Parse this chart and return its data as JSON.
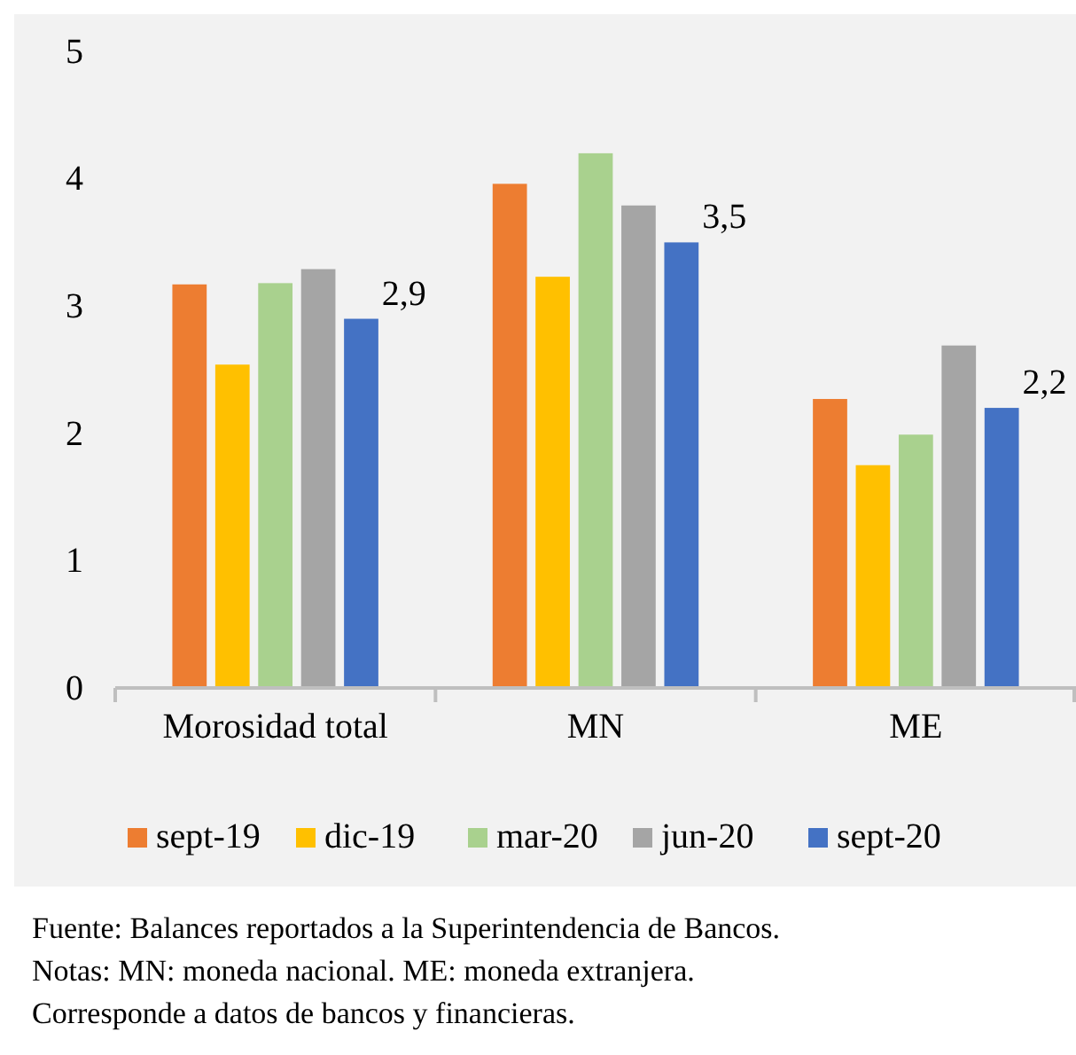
{
  "chart_data": {
    "type": "bar",
    "categories": [
      "Morosidad total",
      "MN",
      "ME"
    ],
    "series": [
      {
        "name": "sept-19",
        "color": "#ed7d31",
        "values": [
          3.17,
          3.96,
          2.27
        ]
      },
      {
        "name": "dic-19",
        "color": "#ffc000",
        "values": [
          2.54,
          3.23,
          1.75
        ]
      },
      {
        "name": "mar-20",
        "color": "#a9d18e",
        "values": [
          3.18,
          4.2,
          1.99
        ]
      },
      {
        "name": "jun-20",
        "color": "#a5a5a5",
        "values": [
          3.29,
          3.79,
          2.69
        ]
      },
      {
        "name": "sept-20",
        "color": "#4472c4",
        "values": [
          2.9,
          3.5,
          2.2
        ],
        "value_labels": [
          "2,9",
          "3,5",
          "2,2"
        ]
      }
    ],
    "ylim": [
      0,
      5
    ],
    "yticks": [
      0,
      1,
      2,
      3,
      4,
      5
    ],
    "grid": false,
    "legend": "bottom",
    "annotations": [
      "Fuente: Balances reportados a la Superintendencia de Bancos.",
      "Notas: MN: moneda nacional. ME: moneda extranjera.",
      "Corresponde a datos de bancos y financieras."
    ]
  }
}
